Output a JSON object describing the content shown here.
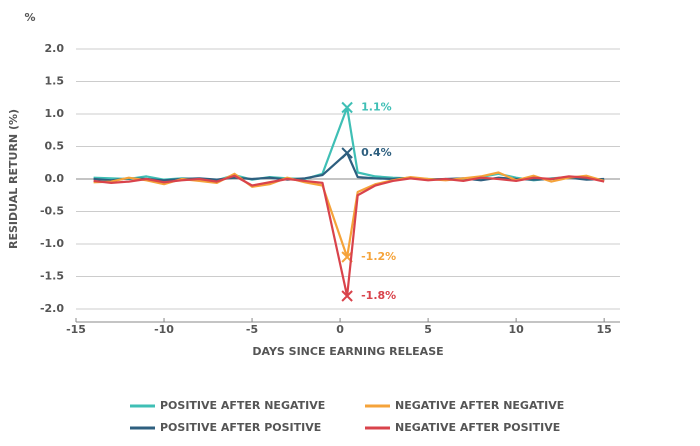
{
  "chart_data": {
    "type": "line",
    "unit": "%",
    "y_label": "RESIDUAL RETURN (%)",
    "x_label": "DAYS SINCE EARNING RELEASE",
    "x": [
      -14,
      -13,
      -12,
      -11,
      -10,
      -9,
      -8,
      -7,
      -6,
      -5,
      -4,
      -3,
      -2,
      -1,
      0.4,
      1,
      2,
      3,
      4,
      5,
      6,
      7,
      8,
      9,
      10,
      11,
      12,
      13,
      14,
      15
    ],
    "series": [
      {
        "name": "POSITIVE AFTER NEGATIVE",
        "color": "#3fbfb5",
        "values": [
          0.02,
          0.01,
          0.0,
          0.04,
          -0.01,
          0.01,
          0.0,
          -0.02,
          0.06,
          -0.01,
          0.03,
          0.01,
          0.0,
          0.08,
          1.1,
          0.1,
          0.04,
          0.02,
          0.01,
          0.0,
          -0.01,
          0.0,
          0.03,
          0.08,
          0.02,
          -0.02,
          0.01,
          0.03,
          0.02,
          -0.02
        ],
        "value_labels": [
          null,
          null,
          null,
          null,
          null,
          null,
          null,
          null,
          null,
          null,
          null,
          null,
          null,
          null,
          "1.1%",
          null,
          null,
          null,
          null,
          null,
          null,
          null,
          null,
          null,
          null,
          null,
          null,
          null,
          null,
          null
        ]
      },
      {
        "name": "POSITIVE AFTER POSITIVE",
        "color": "#2e5f7f",
        "values": [
          0.0,
          -0.02,
          0.01,
          0.0,
          -0.02,
          0.0,
          0.01,
          -0.01,
          0.02,
          0.0,
          0.02,
          -0.01,
          0.01,
          0.06,
          0.4,
          0.03,
          0.01,
          0.0,
          0.02,
          -0.01,
          0.0,
          0.01,
          -0.02,
          0.02,
          0.0,
          -0.01,
          0.0,
          0.02,
          -0.01,
          0.0
        ],
        "value_labels": [
          null,
          null,
          null,
          null,
          null,
          null,
          null,
          null,
          null,
          null,
          null,
          null,
          null,
          null,
          "0.4%",
          null,
          null,
          null,
          null,
          null,
          null,
          null,
          null,
          null,
          null,
          null,
          null,
          null,
          null,
          null
        ]
      },
      {
        "name": "NEGATIVE AFTER NEGATIVE",
        "color": "#f5a33a",
        "values": [
          -0.05,
          -0.04,
          0.02,
          -0.02,
          -0.08,
          0.0,
          -0.03,
          -0.06,
          0.08,
          -0.12,
          -0.08,
          0.02,
          -0.05,
          -0.1,
          -1.2,
          -0.2,
          -0.08,
          -0.02,
          0.03,
          0.0,
          -0.02,
          0.01,
          0.04,
          0.1,
          -0.02,
          0.05,
          -0.04,
          0.02,
          0.05,
          -0.03
        ],
        "value_labels": [
          null,
          null,
          null,
          null,
          null,
          null,
          null,
          null,
          null,
          null,
          null,
          null,
          null,
          null,
          "-1.2%",
          null,
          null,
          null,
          null,
          null,
          null,
          null,
          null,
          null,
          null,
          null,
          null,
          null,
          null,
          null
        ]
      },
      {
        "name": "NEGATIVE AFTER POSITIVE",
        "color": "#d9434b",
        "values": [
          -0.03,
          -0.06,
          -0.04,
          0.0,
          -0.05,
          -0.02,
          0.0,
          -0.04,
          0.05,
          -0.1,
          -0.05,
          0.0,
          -0.03,
          -0.06,
          -1.8,
          -0.25,
          -0.1,
          -0.03,
          0.01,
          -0.02,
          0.0,
          -0.03,
          0.02,
          0.0,
          -0.03,
          0.02,
          0.0,
          0.04,
          0.02,
          -0.04
        ],
        "value_labels": [
          null,
          null,
          null,
          null,
          null,
          null,
          null,
          null,
          null,
          null,
          null,
          null,
          null,
          null,
          "-1.8%",
          null,
          null,
          null,
          null,
          null,
          null,
          null,
          null,
          null,
          null,
          null,
          null,
          null,
          null,
          null
        ]
      }
    ],
    "xlim": [
      -15,
      15.9
    ],
    "ylim": [
      -2,
      2
    ],
    "xticks": [
      -15,
      -10,
      -5,
      0,
      5,
      10,
      15
    ],
    "yticks": [
      {
        "value": -2,
        "label": "-2.0"
      },
      {
        "value": -1.5,
        "label": "-1.5"
      },
      {
        "value": -1,
        "label": "-1.0"
      },
      {
        "value": -0.5,
        "label": "-0.5"
      },
      {
        "value": 0,
        "label": "0.0"
      },
      {
        "value": 0.5,
        "label": "0.5"
      },
      {
        "value": 1,
        "label": "1.0"
      },
      {
        "value": 1.5,
        "label": "1.5"
      },
      {
        "value": 2,
        "label": "2.0"
      }
    ],
    "grid": true
  }
}
